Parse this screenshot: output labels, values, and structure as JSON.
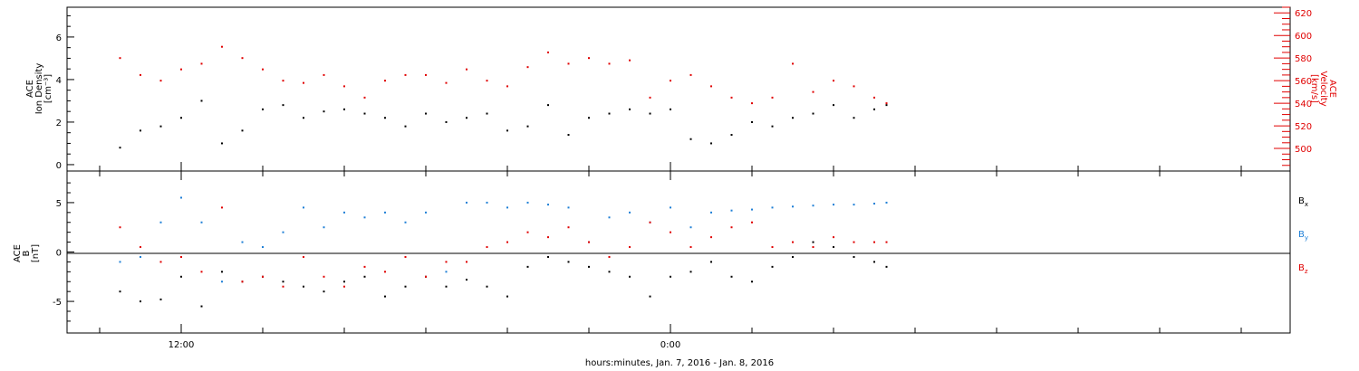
{
  "chart_data": [
    {
      "type": "scatter",
      "panel": "top",
      "ylabel_left": [
        "ACE",
        "Ion Density",
        "[cm⁻³]"
      ],
      "ylabel_right": [
        "ACE",
        "Velocity",
        "[km/s]"
      ],
      "ylim_left": [
        -0.3,
        7.4
      ],
      "yticks_left": [
        0,
        2,
        4,
        6
      ],
      "ylim_right": [
        480,
        625
      ],
      "yticks_right": [
        500,
        520,
        540,
        560,
        580,
        600,
        620
      ],
      "series": [
        {
          "axis": "left",
          "color": "#000000",
          "x_hours": [
            -13.5,
            -13.0,
            -12.5,
            -12.0,
            -11.5,
            -11.0,
            -10.5,
            -10.0,
            -9.5,
            -9.0,
            -8.5,
            -8.0,
            -7.5,
            -7.0,
            -6.5,
            -6.0,
            -5.5,
            -5.0,
            -4.5,
            -4.0,
            -3.5,
            -3.0,
            -2.5,
            -2.0,
            -1.5,
            -1.0,
            -0.5,
            0.0,
            0.5,
            1.0,
            1.5,
            2.0,
            2.5,
            3.0,
            3.5,
            4.0,
            4.5,
            5.0,
            5.3
          ],
          "values": [
            0.8,
            1.6,
            1.8,
            2.2,
            3.0,
            1.0,
            1.6,
            2.6,
            2.8,
            2.2,
            2.5,
            2.6,
            2.4,
            2.2,
            1.8,
            2.4,
            2.0,
            2.2,
            2.4,
            1.6,
            1.8,
            2.8,
            1.4,
            2.2,
            2.4,
            2.6,
            2.4,
            2.6,
            1.2,
            1.0,
            1.4,
            2.0,
            1.8,
            2.2,
            2.4,
            2.8,
            2.2,
            2.6,
            2.8
          ]
        },
        {
          "axis": "right",
          "color": "#e00000",
          "x_hours": [
            -13.5,
            -13.0,
            -12.5,
            -12.0,
            -11.5,
            -11.0,
            -10.5,
            -10.0,
            -9.5,
            -9.0,
            -8.5,
            -8.0,
            -7.5,
            -7.0,
            -6.5,
            -6.0,
            -5.5,
            -5.0,
            -4.5,
            -4.0,
            -3.5,
            -3.0,
            -2.5,
            -2.0,
            -1.5,
            -1.0,
            -0.5,
            0.0,
            0.5,
            1.0,
            1.5,
            2.0,
            2.5,
            3.0,
            3.5,
            4.0,
            4.5,
            5.0,
            5.3
          ],
          "values": [
            580,
            565,
            560,
            570,
            575,
            590,
            580,
            570,
            560,
            558,
            565,
            555,
            545,
            560,
            565,
            565,
            558,
            570,
            560,
            555,
            572,
            585,
            575,
            580,
            575,
            578,
            545,
            560,
            565,
            555,
            545,
            540,
            545,
            575,
            550,
            560,
            555,
            545,
            540
          ]
        }
      ]
    },
    {
      "type": "scatter",
      "panel": "bottom",
      "ylabel": [
        "ACE",
        "B",
        "[nT]"
      ],
      "ylim": [
        -8.2,
        8.2
      ],
      "yticks": [
        -5,
        0,
        5
      ],
      "zero_line": true,
      "legend_placement": "right",
      "series": [
        {
          "name": "B",
          "subscript": "x",
          "color": "#000000",
          "x_hours": [
            -13.5,
            -13.0,
            -12.5,
            -12.0,
            -11.5,
            -11.0,
            -10.5,
            -10.0,
            -9.5,
            -9.0,
            -8.5,
            -8.0,
            -7.5,
            -7.0,
            -6.5,
            -6.0,
            -5.5,
            -5.0,
            -4.5,
            -4.0,
            -3.5,
            -3.0,
            -2.5,
            -2.0,
            -1.5,
            -1.0,
            -0.5,
            0.0,
            0.5,
            1.0,
            1.5,
            2.0,
            2.5,
            3.0,
            3.5,
            4.0,
            4.5,
            5.0,
            5.3
          ],
          "values": [
            -4.0,
            -5.0,
            -4.8,
            -2.5,
            -5.5,
            -2.0,
            -3.0,
            -2.5,
            -3.0,
            -3.5,
            -4.0,
            -3.0,
            -2.5,
            -4.5,
            -3.5,
            -2.5,
            -3.5,
            -2.8,
            -3.5,
            -4.5,
            -1.5,
            -0.5,
            -1.0,
            -1.5,
            -2.0,
            -2.5,
            -4.5,
            -2.5,
            -2.0,
            -1.0,
            -2.5,
            -3.0,
            -1.5,
            -0.5,
            1.0,
            0.5,
            -0.5,
            -1.0,
            -1.5
          ]
        },
        {
          "name": "B",
          "subscript": "y",
          "color": "#1e7fd6",
          "x_hours": [
            -13.5,
            -13.0,
            -12.5,
            -12.0,
            -11.5,
            -11.0,
            -10.5,
            -10.0,
            -9.5,
            -9.0,
            -8.5,
            -8.0,
            -7.5,
            -7.0,
            -6.5,
            -6.0,
            -5.5,
            -5.0,
            -4.5,
            -4.0,
            -3.5,
            -3.0,
            -2.5,
            -2.0,
            -1.5,
            -1.0,
            -0.5,
            0.0,
            0.5,
            1.0,
            1.5,
            2.0,
            2.5,
            3.0,
            3.5,
            4.0,
            4.5,
            5.0,
            5.3
          ],
          "values": [
            -1.0,
            -0.5,
            3.0,
            5.5,
            3.0,
            -3.0,
            1.0,
            0.5,
            2.0,
            4.5,
            2.5,
            4.0,
            3.5,
            4.0,
            3.0,
            4.0,
            -2.0,
            5.0,
            5.0,
            4.5,
            5.0,
            4.8,
            4.5,
            1.0,
            3.5,
            4.0,
            3.0,
            4.5,
            2.5,
            4.0,
            4.2,
            4.3,
            4.5,
            4.6,
            4.7,
            4.8,
            4.8,
            4.9,
            5.0
          ]
        },
        {
          "name": "B",
          "subscript": "z",
          "color": "#e00000",
          "x_hours": [
            -13.5,
            -13.0,
            -12.5,
            -12.0,
            -11.5,
            -11.0,
            -10.5,
            -10.0,
            -9.5,
            -9.0,
            -8.5,
            -8.0,
            -7.5,
            -7.0,
            -6.5,
            -6.0,
            -5.5,
            -5.0,
            -4.5,
            -4.0,
            -3.5,
            -3.0,
            -2.5,
            -2.0,
            -1.5,
            -1.0,
            -0.5,
            0.0,
            0.5,
            1.0,
            1.5,
            2.0,
            2.5,
            3.0,
            3.5,
            4.0,
            4.5,
            5.0,
            5.3
          ],
          "values": [
            2.5,
            0.5,
            -1.0,
            -0.5,
            -2.0,
            4.5,
            -3.0,
            -2.5,
            -3.5,
            -0.5,
            -2.5,
            -3.5,
            -1.5,
            -2.0,
            -0.5,
            -2.5,
            -1.0,
            -1.0,
            0.5,
            1.0,
            2.0,
            1.5,
            2.5,
            1.0,
            -0.5,
            0.5,
            3.0,
            2.0,
            0.5,
            1.5,
            2.5,
            3.0,
            0.5,
            1.0,
            0.5,
            1.5,
            1.0,
            1.0,
            1.0
          ]
        }
      ]
    }
  ],
  "x_axis": {
    "tick_labels": [
      {
        "hour": -12,
        "label": "12:00"
      },
      {
        "hour": 0,
        "label": "0:00"
      }
    ],
    "xlim_hours": [
      -14.8,
      15.2
    ],
    "minor_tick_every_hours": 2,
    "xlabel": "hours:minutes, Jan.  7, 2016 - Jan.  8, 2016"
  }
}
